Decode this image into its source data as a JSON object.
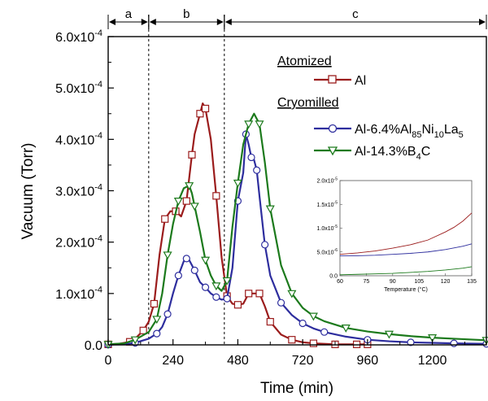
{
  "chart_data": {
    "type": "line",
    "xlabel": "Time (min)",
    "ylabel": "Vacuum (Torr)",
    "xlim": [
      0,
      1400
    ],
    "ylim": [
      0,
      0.0006
    ],
    "x_ticks": [
      "0",
      "240",
      "480",
      "720",
      "960",
      "1200"
    ],
    "y_ticks": [
      {
        "mant": "0.0",
        "exp": ""
      },
      {
        "mant": "1.0x10",
        "exp": "-4"
      },
      {
        "mant": "2.0x10",
        "exp": "-4"
      },
      {
        "mant": "3.0x10",
        "exp": "-4"
      },
      {
        "mant": "4.0x10",
        "exp": "-4"
      },
      {
        "mant": "5.0x10",
        "exp": "-4"
      },
      {
        "mant": "6.0x10",
        "exp": "-4"
      }
    ],
    "grid": false,
    "legend_position": "top-right",
    "legend": {
      "group1": "Atomized",
      "group2": "Cryomilled",
      "al": "Al",
      "alni_parts": [
        "Al-6.4%Al",
        "85",
        "Ni",
        "10",
        "La",
        "5"
      ],
      "alb4c_parts": [
        "Al-14.3%B",
        "4",
        "C"
      ]
    },
    "regions": [
      {
        "label": "a",
        "start": 0,
        "end": 150
      },
      {
        "label": "b",
        "start": 150,
        "end": 430
      },
      {
        "label": "c",
        "start": 430,
        "end": 1400
      }
    ],
    "boundaries": [
      150,
      430
    ],
    "series": [
      {
        "name": "Al",
        "color": "#9b1c1c",
        "marker": "square",
        "x": [
          0,
          40,
          80,
          100,
          130,
          150,
          170,
          190,
          210,
          230,
          250,
          270,
          290,
          300,
          310,
          320,
          340,
          350,
          360,
          380,
          400,
          420,
          440,
          460,
          480,
          500,
          520,
          540,
          560,
          580,
          600,
          640,
          680,
          720,
          760,
          800,
          840,
          880,
          920,
          960
        ],
        "y": [
          1e-06,
          2e-06,
          6e-06,
          1.2e-05,
          2.8e-05,
          4.5e-05,
          8e-05,
          0.000175,
          0.000245,
          0.00026,
          0.00026,
          0.00025,
          0.00028,
          0.000325,
          0.00037,
          0.00041,
          0.00045,
          0.00047,
          0.00046,
          0.0004,
          0.00029,
          0.00017,
          9.5e-05,
          8e-05,
          7.8e-05,
          8e-05,
          0.0001,
          0.0001,
          0.0001,
          7.5e-05,
          4.5e-05,
          2e-05,
          1e-05,
          5e-06,
          3e-06,
          2e-06,
          1e-06,
          1e-06,
          1e-06,
          1e-06
        ]
      },
      {
        "name": "Al-6.4%Al85Ni10La5",
        "color": "#2e2e9e",
        "marker": "circle",
        "x": [
          0,
          60,
          100,
          150,
          180,
          200,
          220,
          240,
          260,
          280,
          290,
          300,
          320,
          340,
          360,
          380,
          400,
          420,
          440,
          460,
          480,
          500,
          510,
          520,
          530,
          540,
          550,
          560,
          580,
          600,
          640,
          680,
          720,
          760,
          800,
          880,
          960,
          1040,
          1120,
          1200,
          1280,
          1400
        ],
        "y": [
          5e-07,
          1e-06,
          4e-06,
          1.2e-05,
          2.2e-05,
          3.5e-05,
          6e-05,
          0.0001,
          0.000135,
          0.000163,
          0.000168,
          0.000165,
          0.000145,
          0.000122,
          0.000112,
          0.0001,
          9.3e-05,
          8.8e-05,
          9e-05,
          0.00015,
          0.00028,
          0.000335,
          0.00041,
          0.00039,
          0.000365,
          0.00036,
          0.00034,
          0.00029,
          0.000195,
          0.000135,
          8.2e-05,
          5.8e-05,
          4.2e-05,
          3.2e-05,
          2.5e-05,
          1.6e-05,
          1e-05,
          7e-06,
          5e-06,
          4e-06,
          3e-06,
          2e-06
        ]
      },
      {
        "name": "Al-14.3%B4C",
        "color": "#1c7a1c",
        "marker": "triangle-down",
        "x": [
          0,
          60,
          100,
          150,
          180,
          200,
          220,
          240,
          260,
          280,
          300,
          310,
          320,
          340,
          360,
          380,
          400,
          420,
          440,
          460,
          480,
          500,
          520,
          540,
          560,
          580,
          600,
          640,
          680,
          720,
          760,
          800,
          880,
          960,
          1040,
          1120,
          1200,
          1280,
          1400
        ],
        "y": [
          1e-06,
          3e-06,
          1e-05,
          2.5e-05,
          5e-05,
          0.0001,
          0.000175,
          0.000235,
          0.00028,
          0.000305,
          0.00031,
          0.000295,
          0.00027,
          0.00022,
          0.000165,
          0.000135,
          0.000115,
          0.000105,
          0.000125,
          0.00023,
          0.000315,
          0.00039,
          0.00043,
          0.00045,
          0.00043,
          0.000355,
          0.000265,
          0.000155,
          0.0001,
          7.2e-05,
          5.6e-05,
          4.6e-05,
          3.3e-05,
          2.6e-05,
          2.1e-05,
          1.7e-05,
          1.4e-05,
          1.2e-05,
          9e-06
        ]
      }
    ],
    "inset": {
      "xlabel": "Temperature (°C)",
      "xlim": [
        60,
        135
      ],
      "ylim": [
        0,
        2e-05
      ],
      "x_ticks": [
        "60",
        "75",
        "90",
        "105",
        "120",
        "135"
      ],
      "y_ticks": [
        {
          "mant": "0.0",
          "exp": ""
        },
        {
          "mant": "5.0x10",
          "exp": "-6"
        },
        {
          "mant": "1.0x10",
          "exp": "-5"
        },
        {
          "mant": "1.5x10",
          "exp": "-5"
        },
        {
          "mant": "2.0x10",
          "exp": "-5"
        }
      ],
      "series": [
        {
          "name": "Al",
          "color": "#9b1c1c",
          "x": [
            60,
            70,
            80,
            90,
            100,
            110,
            120,
            125,
            130,
            135
          ],
          "y": [
            4.5e-06,
            4.8e-06,
            5.2e-06,
            5.8e-06,
            6.5e-06,
            7.5e-06,
            9.2e-06,
            1.02e-05,
            1.15e-05,
            1.32e-05
          ]
        },
        {
          "name": "Al-6.4%Al85Ni10La5",
          "color": "#2e2e9e",
          "x": [
            60,
            70,
            80,
            90,
            100,
            110,
            120,
            130,
            135
          ],
          "y": [
            4.2e-06,
            4.2e-06,
            4.3e-06,
            4.5e-06,
            4.7e-06,
            5e-06,
            5.5e-06,
            6.2e-06,
            6.7e-06
          ]
        },
        {
          "name": "Al-14.3%B4C",
          "color": "#1c7a1c",
          "x": [
            60,
            70,
            80,
            90,
            100,
            110,
            120,
            130,
            135
          ],
          "y": [
            2e-07,
            3e-07,
            4e-07,
            5e-07,
            7e-07,
            9e-07,
            1.2e-06,
            1.6e-06,
            1.9e-06
          ]
        }
      ]
    }
  }
}
